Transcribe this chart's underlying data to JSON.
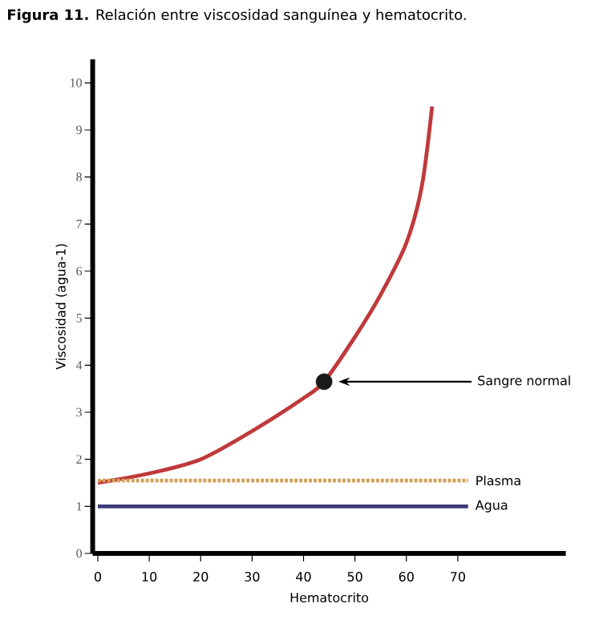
{
  "chart_data": {
    "type": "line",
    "title": "**Figura 11.** Relación entre viscosidad sanguínea y hematocrito.",
    "xlabel": "Hematocrito",
    "ylabel": "Viscosidad (agua-1)",
    "xlim": [
      -1,
      91
    ],
    "ylim": [
      0,
      10.5
    ],
    "xticks": [
      0,
      10,
      20,
      30,
      40,
      50,
      60,
      70
    ],
    "yticks": [
      0,
      1,
      2,
      3,
      4,
      5,
      6,
      7,
      8,
      9,
      10
    ],
    "grid": false,
    "marker": "none",
    "series": [
      {
        "color": "#c0393b",
        "line_style": "solid",
        "x": [
          0,
          10,
          20,
          30,
          40,
          44,
          50,
          55,
          60,
          63,
          65
        ],
        "values": [
          1.5,
          1.7,
          2.0,
          2.6,
          3.3,
          3.65,
          4.6,
          5.5,
          6.6,
          7.8,
          9.5
        ]
      },
      {
        "name": "Plasma",
        "color": "#d4a15a",
        "line_style": "dotted",
        "x": [
          0,
          72
        ],
        "values": [
          1.55,
          1.55
        ]
      },
      {
        "name": "Agua",
        "color": "#3b3b7a",
        "line_style": "solid",
        "x": [
          0,
          72
        ],
        "values": [
          1,
          1
        ]
      },
      {
        "type": "scatter",
        "color": "#1a1a1a",
        "marker": "circle",
        "x": [
          44
        ],
        "values": [
          3.65
        ]
      }
    ],
    "annotations": [
      "Sangre normal"
    ]
  }
}
